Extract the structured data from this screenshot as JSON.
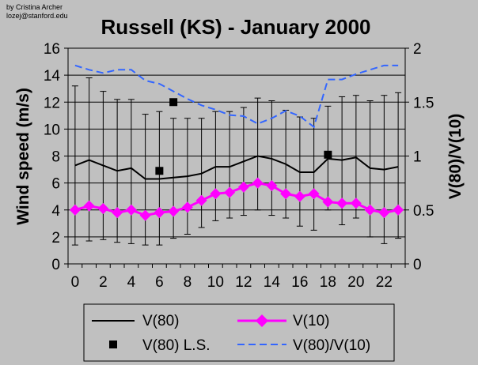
{
  "credit": [
    "by Cristina Archer",
    "lozej@stanford.edu"
  ],
  "chart_data": {
    "type": "line",
    "title": "Russell (KS) - January 2000",
    "ylabel": "Wind speed (m/s)",
    "y2label": "V(80)/V(10)",
    "x": [
      0,
      1,
      2,
      3,
      4,
      5,
      6,
      7,
      8,
      9,
      10,
      11,
      12,
      13,
      14,
      15,
      16,
      17,
      18,
      19,
      20,
      21,
      22,
      23
    ],
    "x_ticks": [
      "0",
      "2",
      "4",
      "6",
      "8",
      "10",
      "12",
      "14",
      "16",
      "18",
      "20",
      "22"
    ],
    "ylim": [
      0,
      16
    ],
    "y_ticks": [
      "0",
      "2",
      "4",
      "6",
      "8",
      "10",
      "12",
      "14",
      "16"
    ],
    "y2lim": [
      0,
      2
    ],
    "y2_ticks": [
      "0",
      "0.5",
      "1",
      "1.5",
      "2"
    ],
    "gridlines": "horizontal",
    "legend_position": "bottom",
    "series": [
      {
        "name": "V(80)",
        "axis": "left",
        "style": "line",
        "color": "#000000",
        "values": [
          7.3,
          7.7,
          7.3,
          6.9,
          7.1,
          6.3,
          6.3,
          6.4,
          6.5,
          6.7,
          7.2,
          7.2,
          7.6,
          8.0,
          7.8,
          7.4,
          6.8,
          6.8,
          7.8,
          7.7,
          7.9,
          7.1,
          7.0,
          7.2
        ],
        "error_low": [
          1.4,
          1.7,
          1.8,
          1.6,
          1.5,
          1.4,
          1.4,
          1.9,
          2.2,
          2.7,
          3.2,
          3.4,
          3.6,
          4.0,
          3.6,
          3.4,
          2.8,
          2.5,
          4.0,
          2.9,
          3.4,
          2.0,
          1.5,
          1.9
        ],
        "error_high": [
          13.2,
          13.8,
          12.8,
          12.2,
          12.2,
          11.1,
          11.3,
          10.8,
          10.8,
          10.8,
          11.3,
          11.3,
          11.6,
          12.3,
          12.1,
          11.4,
          10.9,
          10.8,
          11.7,
          12.4,
          12.5,
          12.1,
          12.5,
          12.7
        ]
      },
      {
        "name": "V(10)",
        "axis": "left",
        "style": "diamond-line",
        "color": "#ff00ff",
        "values": [
          4.0,
          4.3,
          4.1,
          3.8,
          4.0,
          3.6,
          3.8,
          3.9,
          4.2,
          4.7,
          5.2,
          5.3,
          5.7,
          6.0,
          5.8,
          5.2,
          5.0,
          5.2,
          4.6,
          4.5,
          4.5,
          4.0,
          3.8,
          4.0
        ]
      },
      {
        "name": "V(80) L.S.",
        "axis": "left",
        "style": "square-marker",
        "color": "#000000",
        "points": [
          {
            "x": 6,
            "y": 6.9
          },
          {
            "x": 7,
            "y": 12.0
          },
          {
            "x": 18,
            "y": 8.1
          }
        ]
      },
      {
        "name": "V(80)/V(10)",
        "axis": "right",
        "style": "dashed-line",
        "color": "#3366ff",
        "values": [
          1.84,
          1.8,
          1.77,
          1.8,
          1.8,
          1.7,
          1.67,
          1.6,
          1.53,
          1.47,
          1.43,
          1.38,
          1.37,
          1.3,
          1.35,
          1.42,
          1.37,
          1.27,
          1.71,
          1.71,
          1.76,
          1.8,
          1.84,
          1.84
        ]
      }
    ]
  },
  "legend": [
    {
      "label": "V(80)",
      "key": "v80"
    },
    {
      "label": "V(10)",
      "key": "v10"
    },
    {
      "label": "V(80) L.S.",
      "key": "ls"
    },
    {
      "label": "V(80)/V(10)",
      "key": "ratio"
    }
  ]
}
